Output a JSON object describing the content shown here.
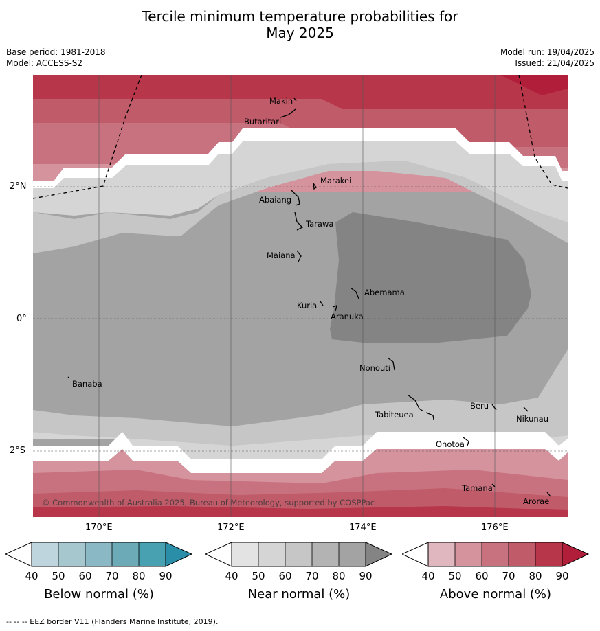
{
  "header": {
    "title_line1": "Tercile minimum temperature probabilities for",
    "title_line2": "May 2025",
    "base_period": "Base period: 1981-2018",
    "model": "Model: ACCESS-S2",
    "model_run": "Model run: 19/04/2025",
    "issued": "Issued: 21/04/2025"
  },
  "map": {
    "lat_labels": [
      "2°N",
      "0°",
      "2°S"
    ],
    "lon_labels": [
      "170°E",
      "172°E",
      "174°E",
      "176°E"
    ],
    "places": [
      "Makin",
      "Butaritari",
      "Marakei",
      "Abaiang",
      "Tarawa",
      "Maiana",
      "Abemama",
      "Kuria",
      "Aranuka",
      "Nonouti",
      "Banaba",
      "Tabiteuea",
      "Beru",
      "Nikunau",
      "Onotoa",
      "Tamana",
      "Arorae"
    ],
    "copyright": "© Commonwealth of Australia 2025, Bureau of Meteorology, supported by COSPPac",
    "colors": {
      "above": [
        "#e0b7be",
        "#d5939d",
        "#c9727f",
        "#c05b69",
        "#b73649",
        "#b01e3a"
      ],
      "near": [
        "#e3e3e3",
        "#d5d5d5",
        "#c6c6c6",
        "#b3b3b3",
        "#a3a3a3",
        "#848484"
      ],
      "below": [
        "#bed5de",
        "#a7c7cf",
        "#8ab8c4",
        "#6daab7",
        "#47a1b1",
        "#2a8ea8"
      ]
    }
  },
  "colorbars": [
    {
      "name": "below",
      "title": "Below normal (%)",
      "ticks": [
        "40",
        "50",
        "60",
        "70",
        "80",
        "90"
      ]
    },
    {
      "name": "near",
      "title": "Near normal (%)",
      "ticks": [
        "40",
        "50",
        "60",
        "70",
        "80",
        "90"
      ]
    },
    {
      "name": "above",
      "title": "Above normal (%)",
      "ticks": [
        "40",
        "50",
        "60",
        "70",
        "80",
        "90"
      ]
    }
  ],
  "footnote": "-- -- -- EEZ border V11 (Flanders Marine Institute, 2019)."
}
